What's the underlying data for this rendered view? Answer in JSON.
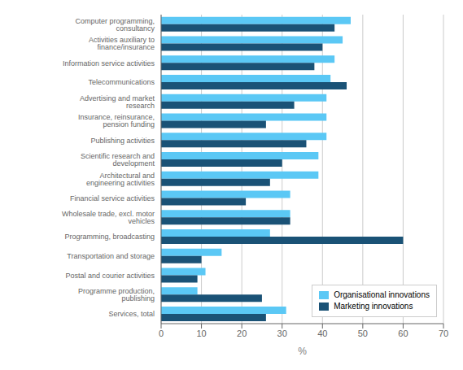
{
  "chart_data": {
    "type": "bar",
    "orientation": "horizontal",
    "categories": [
      "Computer programming, consultancy",
      "Activities auxiliary to finance/insurance",
      "Information service activities",
      "Telecommunications",
      "Advertising and market research",
      "Insurance, reinsurance, pension funding",
      "Publishing activities",
      "Scientific research and development",
      "Architectural and engineering activities",
      "Financial service activities",
      "Wholesale trade, excl. motor vehicles",
      "Programming, broadcasting",
      "Transportation and storage",
      "Postal and courier activities",
      "Programme production, publishing",
      "Services, total"
    ],
    "series": [
      {
        "name": "Organisational innovations",
        "color": "#5bc8f5",
        "values": [
          47,
          45,
          43,
          42,
          41,
          41,
          41,
          39,
          39,
          32,
          32,
          27,
          15,
          11,
          9,
          31
        ]
      },
      {
        "name": "Marketing innovations",
        "color": "#1a5276",
        "values": [
          43,
          40,
          38,
          46,
          33,
          26,
          36,
          30,
          27,
          21,
          32,
          60,
          10,
          9,
          25,
          26
        ]
      }
    ],
    "xlabel": "%",
    "xlim": [
      0,
      70
    ],
    "xticks": [
      0,
      10,
      20,
      30,
      40,
      50,
      60,
      70
    ],
    "grid": true,
    "legend": "lower right"
  }
}
